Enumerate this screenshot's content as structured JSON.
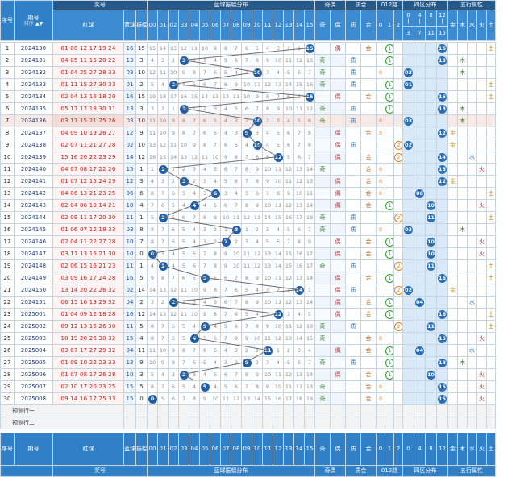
{
  "header": {
    "seq": "序号",
    "period": "期号",
    "sort": "排序",
    "award": "奖号",
    "red": "红球",
    "blue": "蓝球",
    "amp": "振幅",
    "dist_title": "蓝球振幅分布",
    "dist_cols": [
      "00",
      "01",
      "02",
      "03",
      "04",
      "05",
      "06",
      "07",
      "08",
      "09",
      "10",
      "11",
      "12",
      "13",
      "14",
      "15"
    ],
    "odd_even": "奇偶",
    "odd": "奇",
    "even": "偶",
    "prime_comp": "质合",
    "prime": "质",
    "comp": "合",
    "mod3": "012路",
    "mod3_cols": [
      "0",
      "1",
      "2"
    ],
    "zone": "四区分布",
    "zone_top": [
      "0",
      "4",
      "8",
      "12"
    ],
    "zone_bot": [
      "|",
      "|",
      "|",
      "|"
    ],
    "zone_bot2": [
      "3",
      "7",
      "11",
      "15"
    ],
    "wuxing": "五行属性",
    "wx_cols": [
      "金",
      "木",
      "水",
      "火",
      "土"
    ]
  },
  "rows": [
    {
      "seq": "1",
      "period": "2024130",
      "red": "01 08 12 17 19 24",
      "blue": "16",
      "amp": "15"
    },
    {
      "seq": "2",
      "period": "2024131",
      "red": "04 05 11 15 20 22",
      "blue": "13",
      "amp": "3"
    },
    {
      "seq": "3",
      "period": "2024132",
      "red": "01 04 25 27 28 33",
      "blue": "03",
      "amp": "10"
    },
    {
      "seq": "4",
      "period": "2024133",
      "red": "01 11 15 27 30 33",
      "blue": "01",
      "amp": "2"
    },
    {
      "seq": "5",
      "period": "2024134",
      "red": "02 04 13 16 18 20",
      "blue": "16",
      "amp": "15"
    },
    {
      "seq": "6",
      "period": "2024135",
      "red": "05 11 17 18 30 31",
      "blue": "13",
      "amp": "3"
    },
    {
      "seq": "7",
      "period": "2024136",
      "red": "03 11 15 21 25 26",
      "blue": "03",
      "amp": "10"
    },
    {
      "seq": "8",
      "period": "2024137",
      "red": "04 09 10 19 26 27",
      "blue": "12",
      "amp": "9"
    },
    {
      "seq": "9",
      "period": "2024138",
      "red": "02 07 11 21 27 28",
      "blue": "02",
      "amp": "10"
    },
    {
      "seq": "10",
      "period": "2024139",
      "red": "15 16 20 22 23 29",
      "blue": "14",
      "amp": "12"
    },
    {
      "seq": "11",
      "period": "2024140",
      "red": "04 07 08 17 22 26",
      "blue": "15",
      "amp": "1"
    },
    {
      "seq": "12",
      "period": "2024141",
      "red": "01 07 12 15 24 29",
      "blue": "12",
      "amp": "3"
    },
    {
      "seq": "13",
      "period": "2024142",
      "red": "04 06 13 21 23 25",
      "blue": "06",
      "amp": "6"
    },
    {
      "seq": "14",
      "period": "2024143",
      "red": "02 04 06 10 14 21",
      "blue": "10",
      "amp": "4"
    },
    {
      "seq": "15",
      "period": "2024144",
      "red": "02 09 11 17 20 30",
      "blue": "11",
      "amp": "1"
    },
    {
      "seq": "16",
      "period": "2024145",
      "red": "01 06 07 12 18 33",
      "blue": "03",
      "amp": "8"
    },
    {
      "seq": "17",
      "period": "2024146",
      "red": "02 04 11 22 27 28",
      "blue": "10",
      "amp": "7"
    },
    {
      "seq": "18",
      "period": "2024147",
      "red": "03 11 13 16 21 30",
      "blue": "10",
      "amp": "0"
    },
    {
      "seq": "19",
      "period": "2024148",
      "red": "02 06 15 16 21 23",
      "blue": "11",
      "amp": "1"
    },
    {
      "seq": "20",
      "period": "2024149",
      "red": "03 09 16 17 24 28",
      "blue": "16",
      "amp": "5"
    },
    {
      "seq": "21",
      "period": "2024150",
      "red": "13 14 20 22 26 32",
      "blue": "02",
      "amp": "14"
    },
    {
      "seq": "22",
      "period": "2024151",
      "red": "06 15 16 19 29 32",
      "blue": "04",
      "amp": "2"
    },
    {
      "seq": "23",
      "period": "2025001",
      "red": "01 04 09 12 18 28",
      "blue": "16",
      "amp": "12"
    },
    {
      "seq": "24",
      "period": "2025002",
      "red": "09 12 13 15 26 30",
      "blue": "11",
      "amp": "5"
    },
    {
      "seq": "25",
      "period": "2025003",
      "red": "10 19 20 26 30 32",
      "blue": "15",
      "amp": "4"
    },
    {
      "seq": "26",
      "period": "2025004",
      "red": "03 07 17 27 29 32",
      "blue": "04",
      "amp": "11"
    },
    {
      "seq": "27",
      "period": "2025005",
      "red": "01 09 10 22 23 33",
      "blue": "13",
      "amp": "9"
    },
    {
      "seq": "28",
      "period": "2025006",
      "red": "01 07 08 17 26 28",
      "blue": "10",
      "amp": "3"
    },
    {
      "seq": "29",
      "period": "2025007",
      "red": "02 10 17 20 23 25",
      "blue": "15",
      "amp": "5"
    },
    {
      "seq": "30",
      "period": "2025008",
      "red": "09 14 16 17 25 33",
      "blue": "15",
      "amp": "0"
    }
  ],
  "predict": [
    "预测行一",
    "预测行二"
  ],
  "footer": {
    "seq": "序号",
    "period": "期号",
    "red": "红球",
    "blue": "蓝球",
    "amp": "振幅",
    "award": "奖号",
    "dist_title": "蓝球振幅分布",
    "odd_even": "奇偶",
    "prime_comp": "质合",
    "mod3": "012路",
    "zone": "四区分布",
    "wuxing": "五行属性"
  },
  "colors": {
    "header": "#2f80c6",
    "ball": "#1f5fa8",
    "red_text": "#c02020"
  }
}
